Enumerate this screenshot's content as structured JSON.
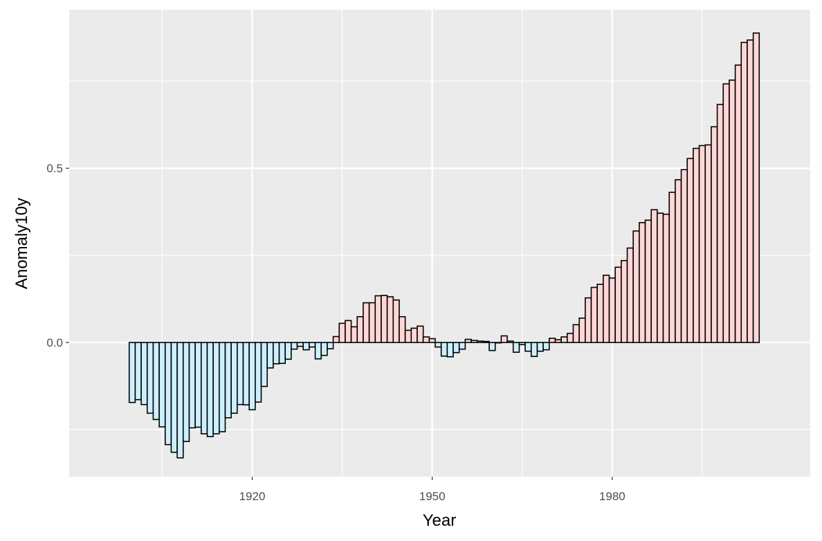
{
  "chart_data": {
    "type": "bar",
    "xlabel": "Year",
    "ylabel": "Anomaly10y",
    "xlim": [
      1889.5,
      2013
    ],
    "ylim": [
      -0.385,
      0.955
    ],
    "x_major_ticks": [
      1920,
      1950,
      1980
    ],
    "x_minor_ticks": [
      1905,
      1935,
      1965,
      1995
    ],
    "y_major_ticks": [
      0.0,
      0.5
    ],
    "y_tick_labels": [
      "0.0",
      "0.5"
    ],
    "y_minor_ticks": [
      -0.25,
      0.25,
      0.75
    ],
    "grid": true,
    "colors": {
      "positive_fill": "#ffd6d6",
      "negative_fill": "#cdeffd",
      "bar_outline": "#000000",
      "panel": "#ebebeb",
      "grid": "#ffffff"
    },
    "x": [
      1900,
      1901,
      1902,
      1903,
      1904,
      1905,
      1906,
      1907,
      1908,
      1909,
      1910,
      1911,
      1912,
      1913,
      1914,
      1915,
      1916,
      1917,
      1918,
      1919,
      1920,
      1921,
      1922,
      1923,
      1924,
      1925,
      1926,
      1927,
      1928,
      1929,
      1930,
      1931,
      1932,
      1933,
      1934,
      1935,
      1936,
      1937,
      1938,
      1939,
      1940,
      1941,
      1942,
      1943,
      1944,
      1945,
      1946,
      1947,
      1948,
      1949,
      1950,
      1951,
      1952,
      1953,
      1954,
      1955,
      1956,
      1957,
      1958,
      1959,
      1960,
      1961,
      1962,
      1963,
      1964,
      1965,
      1966,
      1967,
      1968,
      1969,
      1970,
      1971,
      1972,
      1973,
      1974,
      1975,
      1976,
      1977,
      1978,
      1979,
      1980,
      1981,
      1982,
      1983,
      1984,
      1985,
      1986,
      1987,
      1988,
      1989,
      1990,
      1991,
      1992,
      1993,
      1994,
      1995,
      1996,
      1997,
      1998,
      1999,
      2000,
      2001,
      2002,
      2003,
      2004
    ],
    "values": [
      -0.172,
      -0.164,
      -0.178,
      -0.203,
      -0.221,
      -0.242,
      -0.293,
      -0.315,
      -0.331,
      -0.284,
      -0.245,
      -0.243,
      -0.262,
      -0.27,
      -0.262,
      -0.256,
      -0.216,
      -0.203,
      -0.178,
      -0.179,
      -0.193,
      -0.171,
      -0.126,
      -0.073,
      -0.061,
      -0.06,
      -0.048,
      -0.019,
      -0.011,
      -0.021,
      -0.013,
      -0.047,
      -0.037,
      -0.018,
      0.017,
      0.055,
      0.063,
      0.045,
      0.074,
      0.114,
      0.114,
      0.134,
      0.135,
      0.131,
      0.122,
      0.074,
      0.035,
      0.041,
      0.047,
      0.016,
      0.011,
      -0.013,
      -0.039,
      -0.041,
      -0.029,
      -0.019,
      0.009,
      0.006,
      0.004,
      0.003,
      -0.023,
      0.0,
      0.019,
      0.004,
      -0.028,
      -0.006,
      -0.025,
      -0.04,
      -0.025,
      -0.021,
      0.012,
      0.008,
      0.016,
      0.026,
      0.051,
      0.07,
      0.128,
      0.158,
      0.167,
      0.193,
      0.185,
      0.216,
      0.235,
      0.271,
      0.32,
      0.344,
      0.351,
      0.381,
      0.371,
      0.368,
      0.431,
      0.467,
      0.496,
      0.528,
      0.557,
      0.565,
      0.567,
      0.619,
      0.683,
      0.742,
      0.753,
      0.796,
      0.861,
      0.868,
      0.888
    ]
  }
}
